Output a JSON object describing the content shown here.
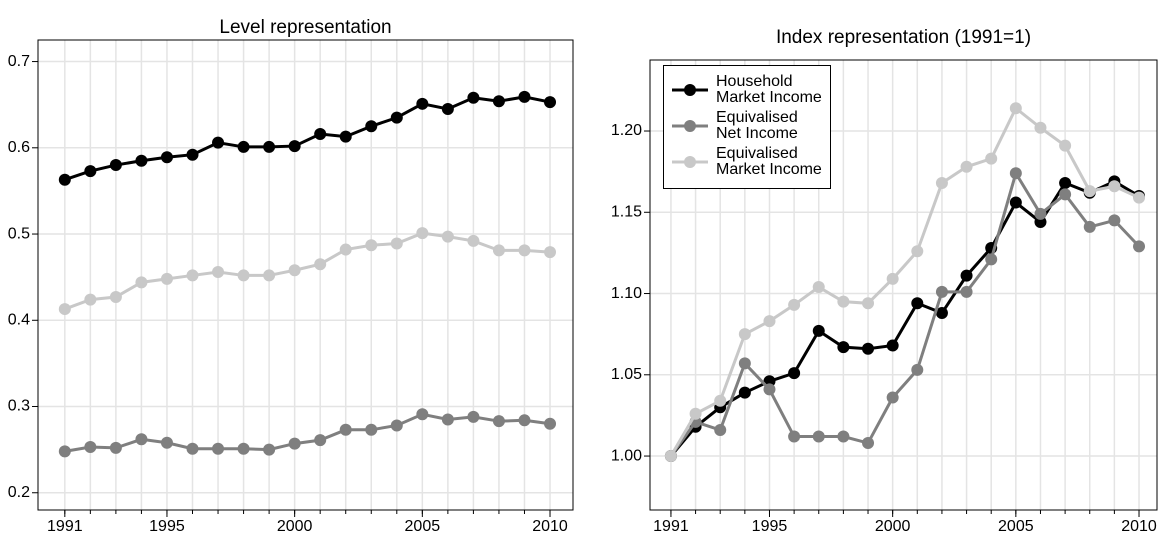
{
  "chart_data": [
    {
      "type": "line",
      "title": "Level representation",
      "x": [
        1991,
        1992,
        1993,
        1994,
        1995,
        1996,
        1997,
        1998,
        1999,
        2000,
        2001,
        2002,
        2003,
        2004,
        2005,
        2006,
        2007,
        2008,
        2009,
        2010
      ],
      "xlim": [
        1989.95,
        2010.9
      ],
      "xticks": [
        1991,
        1995,
        2000,
        2005,
        2010
      ],
      "ylim": [
        0.18,
        0.725
      ],
      "yticks": [
        0.2,
        0.3,
        0.4,
        0.5,
        0.6,
        0.7
      ],
      "grid": true,
      "series": [
        {
          "color": "#000000",
          "values": [
            0.563,
            0.573,
            0.58,
            0.585,
            0.589,
            0.592,
            0.606,
            0.601,
            0.601,
            0.602,
            0.616,
            0.613,
            0.625,
            0.635,
            0.651,
            0.645,
            0.658,
            0.654,
            0.659,
            0.653
          ]
        },
        {
          "color": "#7f7f7f",
          "values": [
            0.248,
            0.253,
            0.252,
            0.262,
            0.258,
            0.251,
            0.251,
            0.251,
            0.25,
            0.257,
            0.261,
            0.273,
            0.273,
            0.278,
            0.291,
            0.285,
            0.288,
            0.283,
            0.284,
            0.28
          ]
        },
        {
          "color": "#c8c8c8",
          "values": [
            0.413,
            0.424,
            0.427,
            0.444,
            0.448,
            0.452,
            0.456,
            0.452,
            0.452,
            0.458,
            0.465,
            0.482,
            0.487,
            0.489,
            0.501,
            0.497,
            0.492,
            0.481,
            0.481,
            0.479
          ]
        }
      ]
    },
    {
      "type": "line",
      "title": "Index representation (1991=1)",
      "x": [
        1991,
        1992,
        1993,
        1994,
        1995,
        1996,
        1997,
        1998,
        1999,
        2000,
        2001,
        2002,
        2003,
        2004,
        2005,
        2006,
        2007,
        2008,
        2009,
        2010
      ],
      "xlim": [
        1990.15,
        2010.73
      ],
      "xticks": [
        1991,
        1995,
        2000,
        2005,
        2010
      ],
      "ylim": [
        0.9668,
        1.2437
      ],
      "yticks": [
        {
          "value": 1,
          "label": "1.00"
        },
        1.05,
        {
          "value": 1.1,
          "label": "1.10"
        },
        1.15,
        {
          "value": 1.2,
          "label": "1.20"
        }
      ],
      "grid": true,
      "legend": "top-left",
      "series": [
        {
          "name": "Household\nMarket Income",
          "color": "#000000",
          "values": [
            1.0,
            1.018,
            1.03,
            1.039,
            1.046,
            1.051,
            1.077,
            1.067,
            1.066,
            1.068,
            1.094,
            1.088,
            1.111,
            1.128,
            1.156,
            1.144,
            1.168,
            1.162,
            1.169,
            1.16
          ]
        },
        {
          "name": "Equivalised\nNet Income",
          "color": "#7f7f7f",
          "values": [
            1.0,
            1.021,
            1.016,
            1.057,
            1.041,
            1.012,
            1.012,
            1.012,
            1.008,
            1.036,
            1.053,
            1.101,
            1.101,
            1.121,
            1.174,
            1.149,
            1.161,
            1.141,
            1.145,
            1.129
          ]
        },
        {
          "name": "Equivalised\nMarket Income",
          "color": "#c8c8c8",
          "values": [
            1.0,
            1.026,
            1.034,
            1.075,
            1.083,
            1.093,
            1.104,
            1.095,
            1.094,
            1.109,
            1.126,
            1.168,
            1.178,
            1.183,
            1.214,
            1.202,
            1.191,
            1.163,
            1.166,
            1.159
          ]
        }
      ]
    }
  ]
}
